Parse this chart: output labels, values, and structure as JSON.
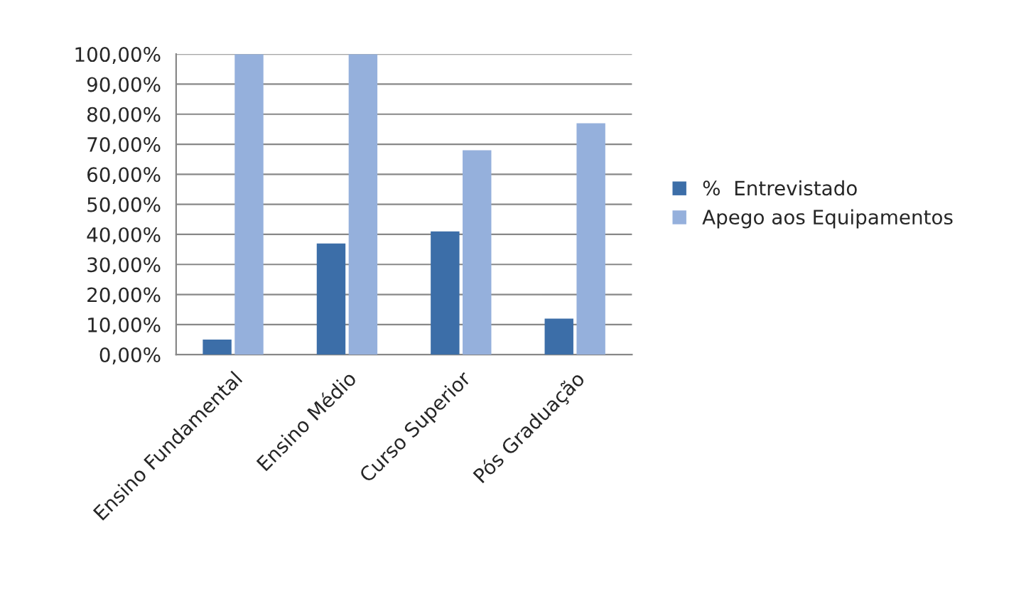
{
  "chart_data": {
    "type": "bar",
    "categories": [
      "Ensino Fundamental",
      "Ensino Médio",
      "Curso Superior",
      "Pós Graduação"
    ],
    "series": [
      {
        "name": "%  Entrevistado",
        "color": "#3c6ea8",
        "values": [
          5,
          37,
          41,
          12
        ]
      },
      {
        "name": "Apego aos Equipamentos",
        "color": "#95b0dc",
        "values": [
          100,
          100,
          68,
          77
        ]
      }
    ],
    "ylim": [
      0,
      100
    ],
    "yticks": [
      {
        "value": 0,
        "label": "0,00%"
      },
      {
        "value": 10,
        "label": "10,00%"
      },
      {
        "value": 20,
        "label": "20,00%"
      },
      {
        "value": 30,
        "label": "30,00%"
      },
      {
        "value": 40,
        "label": "40,00%"
      },
      {
        "value": 50,
        "label": "50,00%"
      },
      {
        "value": 60,
        "label": "60,00%"
      },
      {
        "value": 70,
        "label": "70,00%"
      },
      {
        "value": 80,
        "label": "80,00%"
      },
      {
        "value": 90,
        "label": "90,00%"
      },
      {
        "value": 100,
        "label": "100,00%"
      }
    ],
    "grid": "y",
    "legend": "right"
  }
}
